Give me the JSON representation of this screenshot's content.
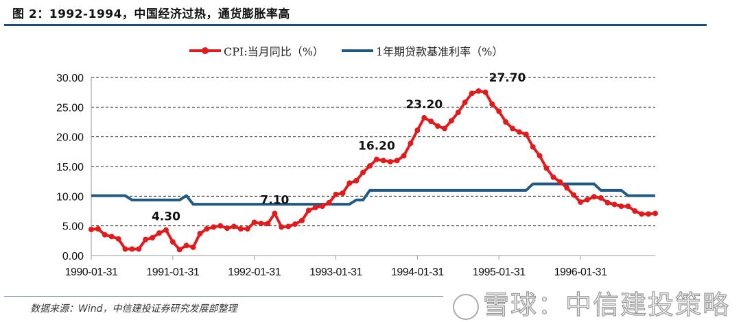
{
  "header": {
    "title": "图 2：1992-1994，中国经济过热，通货膨胀率高"
  },
  "footer": {
    "source": "数据来源：Wind，中信建投证券研究发展部整理",
    "watermark": "雪球：中信建投策略"
  },
  "colors": {
    "cpi": "#e31a1c",
    "rate": "#1f5a85",
    "rule": "#1f4e79"
  },
  "chart_data": {
    "type": "line",
    "title": "",
    "xlabel": "",
    "ylabel": "",
    "ylim": [
      0,
      30
    ],
    "yticks": [
      "0.00",
      "5.00",
      "10.00",
      "15.00",
      "20.00",
      "25.00",
      "30.00"
    ],
    "xticks": [
      "1990-01-31",
      "1991-01-31",
      "1992-01-31",
      "1993-01-31",
      "1994-01-31",
      "1995-01-31",
      "1996-01-31"
    ],
    "x_range": [
      "1990-01",
      "1996-12"
    ],
    "frequency": "monthly",
    "grid": "horizontal dashed",
    "legend_position": "top-center",
    "series": [
      {
        "name": "CPI:当月同比（%）",
        "marker": "circle",
        "values": [
          4.4,
          4.5,
          3.5,
          3.2,
          2.8,
          1.1,
          1.1,
          1.1,
          2.7,
          3.0,
          3.8,
          4.3,
          2.3,
          1.0,
          1.7,
          1.4,
          3.7,
          4.5,
          4.8,
          5.0,
          4.6,
          4.9,
          4.5,
          4.5,
          5.6,
          5.4,
          5.4,
          7.1,
          4.8,
          4.9,
          5.3,
          5.9,
          7.6,
          8.1,
          8.3,
          8.9,
          10.3,
          10.5,
          12.2,
          12.6,
          14.0,
          15.1,
          16.2,
          16.0,
          15.8,
          16.0,
          16.8,
          18.9,
          21.1,
          23.2,
          22.6,
          21.8,
          21.4,
          22.7,
          24.1,
          25.8,
          27.3,
          27.7,
          27.5,
          25.5,
          24.3,
          22.5,
          21.4,
          20.8,
          20.4,
          18.3,
          16.8,
          14.7,
          13.2,
          12.4,
          11.4,
          10.2,
          9.0,
          9.4,
          9.9,
          9.7,
          8.9,
          8.6,
          8.3,
          8.3,
          7.5,
          7.0,
          7.0,
          7.1
        ]
      },
      {
        "name": "1年期贷款基准利率（%）",
        "marker": "none",
        "values": [
          10.08,
          10.08,
          10.08,
          10.08,
          10.08,
          10.08,
          9.36,
          9.36,
          9.36,
          9.36,
          9.36,
          9.36,
          9.36,
          9.36,
          10.08,
          8.64,
          8.64,
          8.64,
          8.64,
          8.64,
          8.64,
          8.64,
          8.64,
          8.64,
          8.64,
          8.64,
          8.64,
          8.64,
          8.64,
          8.64,
          8.64,
          8.64,
          8.64,
          8.64,
          8.64,
          8.64,
          8.64,
          8.64,
          8.64,
          9.36,
          9.36,
          10.98,
          10.98,
          10.98,
          10.98,
          10.98,
          10.98,
          10.98,
          10.98,
          10.98,
          10.98,
          10.98,
          10.98,
          10.98,
          10.98,
          10.98,
          10.98,
          10.98,
          10.98,
          10.98,
          10.98,
          10.98,
          10.98,
          10.98,
          10.98,
          12.06,
          12.06,
          12.06,
          12.06,
          12.06,
          12.06,
          12.06,
          12.06,
          12.06,
          12.06,
          10.98,
          10.98,
          10.98,
          10.98,
          10.08,
          10.08,
          10.08,
          10.08,
          10.08
        ]
      }
    ],
    "annotations": [
      {
        "text": "4.30",
        "month_index": 11
      },
      {
        "text": "7.10",
        "month_index": 27
      },
      {
        "text": "16.20",
        "month_index": 42
      },
      {
        "text": "23.20",
        "month_index": 49
      },
      {
        "text": "27.70",
        "month_index": 57
      }
    ]
  }
}
